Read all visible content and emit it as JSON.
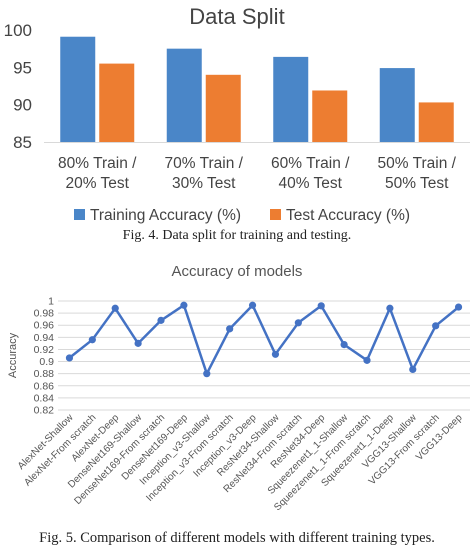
{
  "figure1": {
    "caption": "Fig. 4. Data split for training and testing.",
    "chart_data": {
      "type": "bar",
      "title": "Data Split",
      "categories": [
        [
          "80% Train /",
          "20% Test"
        ],
        [
          "70% Train /",
          "30% Test"
        ],
        [
          "60% Train /",
          "40% Test"
        ],
        [
          "50% Train /",
          "50% Test"
        ]
      ],
      "series": [
        {
          "name": "Training Accuracy (%)",
          "values": [
            99.1,
            97.5,
            96.4,
            94.9
          ],
          "color": "#4a86c8"
        },
        {
          "name": "Test Accuracy (%)",
          "values": [
            95.5,
            94.0,
            91.9,
            90.3
          ],
          "color": "#ed7d31"
        }
      ],
      "ylim": [
        85,
        100
      ],
      "yticks": [
        85,
        90,
        95,
        100
      ],
      "grid": false,
      "legend": "bottom"
    }
  },
  "figure2": {
    "caption": "Fig. 5. Comparison of different models with different training types.",
    "chart_data": {
      "type": "line",
      "title": "Accuracy of models",
      "ylabel": "Accuracy",
      "categories": [
        "AlexNet-Shallow",
        "AlexNet-From scratch",
        "AlexNet-Deep",
        "DenseNet169-Shallow",
        "DenseNet169-From scratch",
        "DenseNet169-Deep",
        "Inception_v3-Shallow",
        "Inception_v3-From scratch",
        "Inception_v3-Deep",
        "ResNet34-Shallow",
        "ResNet34-From scratch",
        "ResNet34-Deep",
        "Squeezenet1_1-Shallow",
        "Squeezenet1_1-From scratch",
        "Squeezenet1_1-Deep",
        "VGG13-Shallow",
        "VGG13-From scratch",
        "VGG13-Deep"
      ],
      "series": [
        {
          "values": [
            0.906,
            0.936,
            0.988,
            0.93,
            0.968,
            0.993,
            0.88,
            0.954,
            0.993,
            0.912,
            0.964,
            0.992,
            0.928,
            0.902,
            0.988,
            0.887,
            0.959,
            0.99
          ],
          "color": "#4472c4"
        }
      ],
      "ylim": [
        0.82,
        1.0
      ],
      "yticks": [
        "0.82",
        "0.84",
        "0.86",
        "0.88",
        "0.9",
        "0.92",
        "0.94",
        "0.96",
        "0.98",
        "1"
      ],
      "grid": true,
      "legend": "none"
    }
  }
}
